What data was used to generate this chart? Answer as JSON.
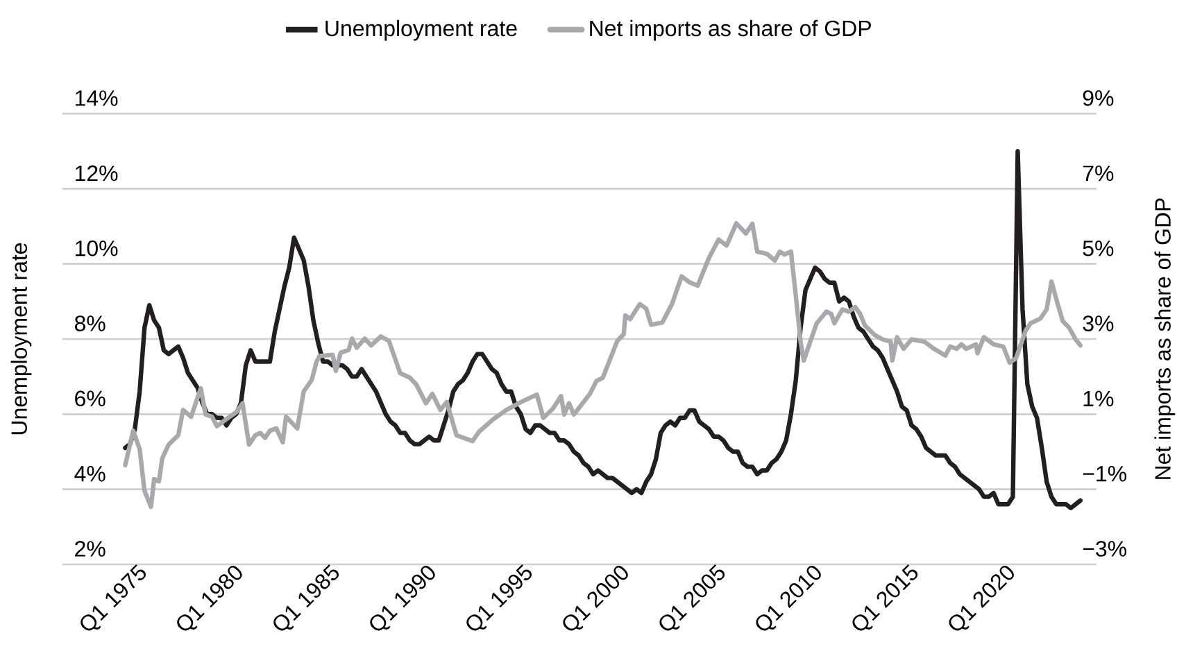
{
  "chart_data": {
    "type": "line",
    "x": [
      "1974-01",
      "1974-04",
      "1974-07",
      "1974-10",
      "1975-01",
      "1975-04",
      "1975-07",
      "1975-10",
      "1976-01",
      "1976-04",
      "1976-07",
      "1976-10",
      "1977-01",
      "1977-04",
      "1977-07",
      "1977-10",
      "1978-01",
      "1978-04",
      "1978-07",
      "1978-10",
      "1979-01",
      "1979-04",
      "1979-07",
      "1979-10",
      "1980-01",
      "1980-04",
      "1980-07",
      "1980-10",
      "1981-01",
      "1981-04",
      "1981-07",
      "1981-10",
      "1982-01",
      "1982-04",
      "1982-07",
      "1982-10",
      "1983-01",
      "1983-04",
      "1983-07",
      "1983-10",
      "1984-01",
      "1984-04",
      "1984-07",
      "1984-10",
      "1985-01",
      "1985-04",
      "1985-07",
      "1985-10",
      "1986-01",
      "1986-04",
      "1986-07",
      "1986-10",
      "1987-01",
      "1987-04",
      "1987-07",
      "1987-10",
      "1988-01",
      "1988-04",
      "1988-07",
      "1988-10",
      "1989-01",
      "1989-04",
      "1989-07",
      "1989-10",
      "1990-01",
      "1990-04",
      "1990-07",
      "1990-10",
      "1991-01",
      "1991-04",
      "1991-07",
      "1991-10",
      "1992-01",
      "1992-04",
      "1992-07",
      "1992-10",
      "1993-01",
      "1993-04",
      "1993-07",
      "1993-10",
      "1994-01",
      "1994-04",
      "1994-07",
      "1994-10",
      "1995-01",
      "1995-04",
      "1995-07",
      "1995-10",
      "1996-01",
      "1996-04",
      "1996-07",
      "1996-10",
      "1997-01",
      "1997-04",
      "1997-07",
      "1997-10",
      "1998-01",
      "1998-04",
      "1998-07",
      "1998-10",
      "1999-01",
      "1999-04",
      "1999-07",
      "1999-10",
      "2000-01",
      "2000-04",
      "2000-07",
      "2000-10",
      "2001-01",
      "2001-04",
      "2001-07",
      "2001-10",
      "2002-01",
      "2002-04",
      "2002-07",
      "2002-10",
      "2003-01",
      "2003-04",
      "2003-07",
      "2003-10",
      "2004-01",
      "2004-04",
      "2004-07",
      "2004-10",
      "2005-01",
      "2005-04",
      "2005-07",
      "2005-10",
      "2006-01",
      "2006-04",
      "2006-07",
      "2006-10",
      "2007-01",
      "2007-04",
      "2007-07",
      "2007-10",
      "2008-01",
      "2008-04",
      "2008-07",
      "2008-10",
      "2009-01",
      "2009-04",
      "2009-07",
      "2009-10",
      "2010-01",
      "2010-04",
      "2010-07",
      "2010-10",
      "2011-01",
      "2011-04",
      "2011-07",
      "2011-10",
      "2012-01",
      "2012-04",
      "2012-07",
      "2012-10",
      "2013-01",
      "2013-04",
      "2013-07",
      "2013-10",
      "2014-01",
      "2014-04",
      "2014-07",
      "2014-10",
      "2015-01",
      "2015-04",
      "2015-07",
      "2015-10",
      "2016-01",
      "2016-04",
      "2016-07",
      "2016-10",
      "2017-01",
      "2017-04",
      "2017-07",
      "2017-10",
      "2018-01",
      "2018-04",
      "2018-07",
      "2018-10",
      "2019-01",
      "2019-04",
      "2019-07",
      "2019-10",
      "2020-01",
      "2020-04",
      "2020-07",
      "2020-10",
      "2021-01",
      "2021-04",
      "2021-07",
      "2021-10",
      "2022-01",
      "2022-04",
      "2022-07",
      "2022-10",
      "2023-01",
      "2023-04",
      "2023-07"
    ],
    "series": [
      {
        "name": "Unemployment rate",
        "color": "#231f20",
        "values": [
          5.1,
          5.2,
          5.6,
          6.6,
          8.3,
          8.9,
          8.5,
          8.3,
          7.7,
          7.6,
          7.7,
          7.8,
          7.5,
          7.1,
          6.9,
          6.7,
          6.3,
          6.0,
          6.0,
          5.9,
          5.9,
          5.7,
          5.9,
          6.0,
          6.3,
          7.3,
          7.7,
          7.4,
          7.4,
          7.4,
          7.4,
          8.2,
          8.8,
          9.4,
          9.9,
          10.7,
          10.4,
          10.1,
          9.4,
          8.5,
          7.9,
          7.4,
          7.4,
          7.3,
          7.3,
          7.3,
          7.2,
          7.0,
          7.0,
          7.2,
          7.0,
          6.8,
          6.6,
          6.3,
          6.0,
          5.8,
          5.7,
          5.5,
          5.5,
          5.3,
          5.2,
          5.2,
          5.3,
          5.4,
          5.3,
          5.3,
          5.7,
          6.1,
          6.6,
          6.8,
          6.9,
          7.1,
          7.4,
          7.6,
          7.6,
          7.4,
          7.2,
          7.1,
          6.8,
          6.6,
          6.6,
          6.2,
          6.0,
          5.6,
          5.5,
          5.7,
          5.7,
          5.6,
          5.5,
          5.5,
          5.3,
          5.3,
          5.2,
          5.0,
          4.9,
          4.7,
          4.6,
          4.4,
          4.5,
          4.4,
          4.3,
          4.3,
          4.2,
          4.1,
          4.0,
          3.9,
          4.0,
          3.9,
          4.2,
          4.4,
          4.8,
          5.5,
          5.7,
          5.8,
          5.7,
          5.9,
          5.9,
          6.1,
          6.1,
          5.8,
          5.7,
          5.6,
          5.4,
          5.4,
          5.3,
          5.1,
          5.0,
          5.0,
          4.7,
          4.6,
          4.6,
          4.4,
          4.5,
          4.5,
          4.7,
          4.8,
          5.0,
          5.3,
          6.0,
          6.9,
          8.3,
          9.3,
          9.6,
          9.9,
          9.8,
          9.6,
          9.5,
          9.5,
          9.0,
          9.1,
          9.0,
          8.6,
          8.3,
          8.2,
          8.0,
          7.8,
          7.7,
          7.5,
          7.2,
          6.9,
          6.6,
          6.2,
          6.1,
          5.7,
          5.6,
          5.4,
          5.1,
          5.0,
          4.9,
          4.9,
          4.9,
          4.7,
          4.6,
          4.4,
          4.3,
          4.2,
          4.1,
          4.0,
          3.8,
          3.8,
          3.9,
          3.6,
          3.6,
          3.6,
          3.8,
          13.0,
          8.8,
          6.8,
          6.2,
          5.9,
          5.1,
          4.2,
          3.8,
          3.6,
          3.6,
          3.6,
          3.5,
          3.6,
          3.7
        ]
      },
      {
        "name": "Net imports as share of GDP",
        "color": "#a7a9ac",
        "axis": "y2",
        "x": [
          "1974-01",
          "1974-06",
          "1974-10",
          "1975-01",
          "1975-05",
          "1975-07",
          "1975-10",
          "1975-12",
          "1976-04",
          "1976-10",
          "1977-01",
          "1977-06",
          "1977-12",
          "1978-03",
          "1978-07",
          "1978-10",
          "1979-04",
          "1979-10",
          "1980-02",
          "1980-06",
          "1980-10",
          "1981-01",
          "1981-04",
          "1981-07",
          "1981-11",
          "1982-03",
          "1982-05",
          "1982-12",
          "1983-04",
          "1983-09",
          "1983-12",
          "1984-02",
          "1984-10",
          "1984-12",
          "1985-03",
          "1985-08",
          "1985-10",
          "1986-01",
          "1986-06",
          "1986-10",
          "1987-04",
          "1987-09",
          "1988-04",
          "1988-10",
          "1989-02",
          "1989-08",
          "1989-12",
          "1990-05",
          "1990-09",
          "1991-03",
          "1992-01",
          "1992-05",
          "1993-02",
          "1993-10",
          "1994-07",
          "1995-05",
          "1995-09",
          "1996-03",
          "1996-08",
          "1996-10",
          "1997-01",
          "1997-04",
          "1998-02",
          "1998-06",
          "1998-10",
          "1999-07",
          "1999-11",
          "1999-12",
          "2000-03",
          "2000-09",
          "2001-01",
          "2001-04",
          "2001-11",
          "2002-05",
          "2002-11",
          "2003-04",
          "2003-09",
          "2004-04",
          "2004-10",
          "2005-03",
          "2005-09",
          "2006-03",
          "2006-07",
          "2006-10",
          "2007-04",
          "2007-09",
          "2007-12",
          "2008-03",
          "2008-07",
          "2008-10",
          "2009-01",
          "2009-03",
          "2009-07",
          "2009-11",
          "2010-05",
          "2010-08",
          "2010-10",
          "2011-03",
          "2011-07",
          "2011-11",
          "2012-02",
          "2012-05",
          "2012-11",
          "2013-04",
          "2013-09",
          "2013-10",
          "2014-01",
          "2014-05",
          "2014-10",
          "2015-06",
          "2015-12",
          "2016-07",
          "2016-10",
          "2017-02",
          "2017-05",
          "2017-08",
          "2018-02",
          "2018-03",
          "2018-07",
          "2019-01",
          "2019-07",
          "2019-11",
          "2020-03",
          "2020-09",
          "2020-12",
          "2021-06",
          "2021-10",
          "2022-01",
          "2022-05",
          "2022-08",
          "2022-12",
          "2023-04",
          "2023-07"
        ],
        "values": [
          -0.36,
          0.56,
          0.07,
          -1.04,
          -1.47,
          -0.73,
          -0.79,
          -0.18,
          0.19,
          0.44,
          1.11,
          0.93,
          1.69,
          0.99,
          0.93,
          0.68,
          0.87,
          1.05,
          1.29,
          0.19,
          0.44,
          0.5,
          0.37,
          0.56,
          0.62,
          0.25,
          0.93,
          0.62,
          1.6,
          1.91,
          2.4,
          2.55,
          2.58,
          2.15,
          2.64,
          2.71,
          3.01,
          2.77,
          3.01,
          2.83,
          3.07,
          2.95,
          2.09,
          1.97,
          1.79,
          1.29,
          1.54,
          1.11,
          1.32,
          0.44,
          0.28,
          0.53,
          0.87,
          1.11,
          1.32,
          1.52,
          0.9,
          1.15,
          1.48,
          0.99,
          1.29,
          0.99,
          1.54,
          1.88,
          1.97,
          2.95,
          3.13,
          3.63,
          3.53,
          3.93,
          3.81,
          3.38,
          3.44,
          3.93,
          4.67,
          4.51,
          4.42,
          5.16,
          5.65,
          5.49,
          6.08,
          5.81,
          6.07,
          5.33,
          5.27,
          5.09,
          5.33,
          5.25,
          5.33,
          4.16,
          2.93,
          2.43,
          2.93,
          3.42,
          3.73,
          3.67,
          3.42,
          3.79,
          3.73,
          3.85,
          3.67,
          3.36,
          3.11,
          2.99,
          2.93,
          2.43,
          3.05,
          2.74,
          2.99,
          2.93,
          2.74,
          2.56,
          2.8,
          2.74,
          2.86,
          2.74,
          2.86,
          2.62,
          3.05,
          2.86,
          2.8,
          2.37,
          2.49,
          3.23,
          3.42,
          3.54,
          3.79,
          4.53,
          3.91,
          3.48,
          3.3,
          2.99,
          2.83
        ]
      }
    ],
    "ylabel": "Unemployment rate",
    "y2label": "Net imports as share of GDP",
    "xlim": [
      "1970-10",
      "2024-05"
    ],
    "xticks": [
      {
        "value": "1975-01",
        "label": "Q1 1975"
      },
      {
        "value": "1980-01",
        "label": "Q1 1980"
      },
      {
        "value": "1985-01",
        "label": "Q1 1985"
      },
      {
        "value": "1990-01",
        "label": "Q1 1990"
      },
      {
        "value": "1995-01",
        "label": "Q1 1995"
      },
      {
        "value": "2000-01",
        "label": "Q1 2000"
      },
      {
        "value": "2005-01",
        "label": "Q1 2005"
      },
      {
        "value": "2010-01",
        "label": "Q1 2010"
      },
      {
        "value": "2015-01",
        "label": "Q1 2015"
      },
      {
        "value": "2020-01",
        "label": "Q1 2020"
      }
    ],
    "ylim": [
      2,
      14
    ],
    "yticks": [
      {
        "value": 2,
        "label": "2%"
      },
      {
        "value": 4,
        "label": "4%"
      },
      {
        "value": 6,
        "label": "6%"
      },
      {
        "value": 8,
        "label": "8%"
      },
      {
        "value": 10,
        "label": "10%"
      },
      {
        "value": 12,
        "label": "12%"
      },
      {
        "value": 14,
        "label": "14%"
      }
    ],
    "y2lim": [
      -3,
      9
    ],
    "y2ticks": [
      {
        "value": -3,
        "label": "−3%"
      },
      {
        "value": -1,
        "label": "−1%"
      },
      {
        "value": 1,
        "label": "1%"
      },
      {
        "value": 3,
        "label": "3%"
      },
      {
        "value": 5,
        "label": "5%"
      },
      {
        "value": 7,
        "label": "7%"
      },
      {
        "value": 9,
        "label": "9%"
      }
    ],
    "grid": "y",
    "legend": "top"
  }
}
